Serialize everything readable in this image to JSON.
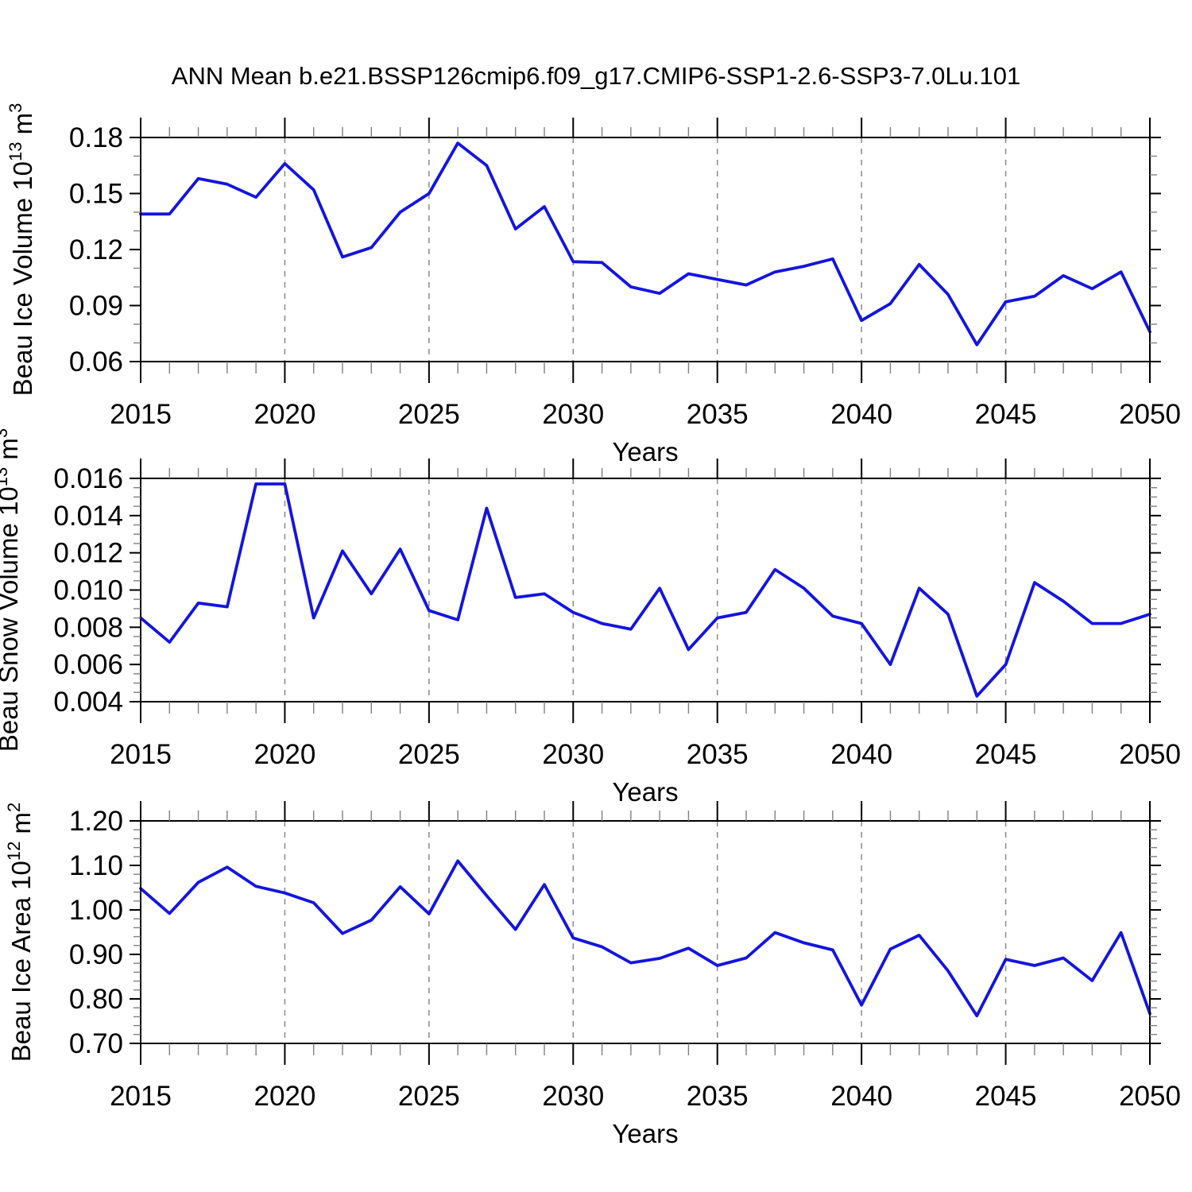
{
  "figure": {
    "title": "ANN Mean b.e21.BSSP126cmip6.f09_g17.CMIP6-SSP1-2.6-SSP3-7.0Lu.101",
    "background": "#ffffff",
    "line_color": "#1414e0",
    "grid_color": "#8a8a8a",
    "minor_tick_color": "#808080",
    "axis_color": "#000000"
  },
  "years": [
    2015,
    2016,
    2017,
    2018,
    2019,
    2020,
    2021,
    2022,
    2023,
    2024,
    2025,
    2026,
    2027,
    2028,
    2029,
    2030,
    2031,
    2032,
    2033,
    2034,
    2035,
    2036,
    2037,
    2038,
    2039,
    2040,
    2041,
    2042,
    2043,
    2044,
    2045,
    2046,
    2047,
    2048,
    2049,
    2050
  ],
  "chart_data": [
    {
      "id": "beau-ice-volume",
      "type": "line",
      "ylabel": "Beau Ice Volume 10^13 m^3",
      "xlabel": "Years",
      "xlim": [
        2015,
        2050
      ],
      "xtick_step_major": 5,
      "xtick_step_minor": 1,
      "grid_vlines": [
        2020,
        2025,
        2030,
        2035,
        2040,
        2045
      ],
      "grid": "vertical-dashed",
      "legend": "none",
      "ylim": [
        0.06,
        0.18
      ],
      "yticks": [
        0.18,
        0.15,
        0.12,
        0.09,
        0.06
      ],
      "ytick_labels": [
        "0.18",
        "0.15",
        "0.12",
        "0.09",
        "0.06"
      ],
      "yminor_step": 0.01,
      "values": [
        0.139,
        0.139,
        0.158,
        0.155,
        0.148,
        0.166,
        0.152,
        0.116,
        0.121,
        0.14,
        0.15,
        0.177,
        0.165,
        0.131,
        0.143,
        0.1135,
        0.113,
        0.1,
        0.0965,
        0.107,
        0.104,
        0.101,
        0.108,
        0.111,
        0.115,
        0.082,
        0.091,
        0.112,
        0.096,
        0.069,
        0.092,
        0.095,
        0.106,
        0.099,
        0.108,
        0.076
      ]
    },
    {
      "id": "beau-snow-volume",
      "type": "line",
      "ylabel": "Beau Snow Volume 10^13 m^3",
      "xlabel": "Years",
      "xlim": [
        2015,
        2050
      ],
      "xtick_step_major": 5,
      "xtick_step_minor": 1,
      "grid_vlines": [
        2020,
        2025,
        2030,
        2035,
        2040,
        2045
      ],
      "grid": "vertical-dashed",
      "legend": "none",
      "ylim": [
        0.004,
        0.016
      ],
      "yticks": [
        0.016,
        0.014,
        0.012,
        0.01,
        0.008,
        0.006,
        0.004
      ],
      "ytick_labels": [
        "0.016",
        "0.014",
        "0.012",
        "0.010",
        "0.008",
        "0.006",
        "0.004"
      ],
      "yminor_step": 0.0005,
      "values": [
        0.0085,
        0.0072,
        0.0093,
        0.0091,
        0.0157,
        0.0157,
        0.0085,
        0.0121,
        0.0098,
        0.0122,
        0.0089,
        0.0084,
        0.0144,
        0.0096,
        0.0098,
        0.0088,
        0.0082,
        0.0079,
        0.0101,
        0.0068,
        0.0085,
        0.0088,
        0.0111,
        0.0101,
        0.0086,
        0.0082,
        0.006,
        0.0101,
        0.0087,
        0.0043,
        0.006,
        0.0104,
        0.0094,
        0.0082,
        0.0082,
        0.0087
      ]
    },
    {
      "id": "beau-ice-area",
      "type": "line",
      "ylabel": "Beau Ice Area 10^12 m^2",
      "xlabel": "Years",
      "xlim": [
        2015,
        2050
      ],
      "xtick_step_major": 5,
      "xtick_step_minor": 1,
      "grid_vlines": [
        2020,
        2025,
        2030,
        2035,
        2040,
        2045
      ],
      "grid": "vertical-dashed",
      "legend": "none",
      "ylim": [
        0.7,
        1.2
      ],
      "yticks": [
        1.2,
        1.1,
        1.0,
        0.9,
        0.8,
        0.7
      ],
      "ytick_labels": [
        "1.20",
        "1.10",
        "1.00",
        "0.90",
        "0.80",
        "0.70"
      ],
      "yminor_step": 0.02,
      "values": [
        1.048,
        0.992,
        1.062,
        1.096,
        1.053,
        1.038,
        1.016,
        0.947,
        0.977,
        1.052,
        0.991,
        1.11,
        1.032,
        0.956,
        1.057,
        0.937,
        0.917,
        0.881,
        0.891,
        0.914,
        0.875,
        0.892,
        0.949,
        0.926,
        0.91,
        0.786,
        0.912,
        0.943,
        0.863,
        0.762,
        0.889,
        0.875,
        0.892,
        0.841,
        0.949,
        0.767
      ]
    }
  ]
}
